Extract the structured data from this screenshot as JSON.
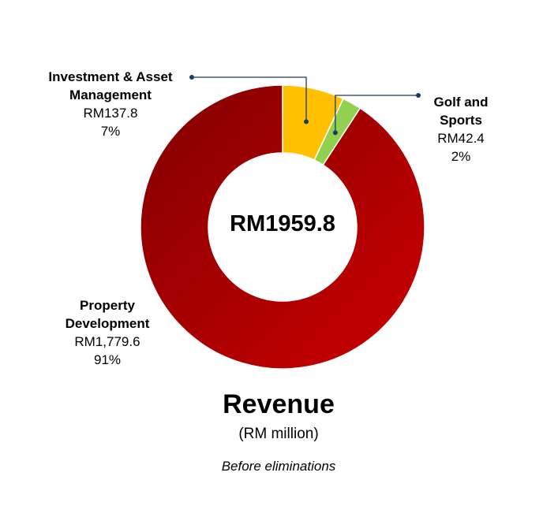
{
  "chart_data": {
    "type": "pie",
    "categories": [
      "Property Development",
      "Investment & Asset Management",
      "Golf and Sports"
    ],
    "values": [
      1779.6,
      137.8,
      42.4
    ],
    "value_labels": [
      "RM1,779.6",
      "RM137.8",
      "RM42.4"
    ],
    "percent_labels": [
      "91%",
      "7%",
      "2%"
    ],
    "category_lines": [
      [
        "Property",
        "Development"
      ],
      [
        "Investment & Asset",
        "Management"
      ],
      [
        "Golf and",
        "Sports"
      ]
    ],
    "center_total": "RM1959.8",
    "title": "Revenue",
    "subtitle": "(RM million)",
    "note": "Before eliminations",
    "colors": [
      "#b50000",
      "#ffc000",
      "#92d050"
    ],
    "leader_color": "#1f3864"
  }
}
